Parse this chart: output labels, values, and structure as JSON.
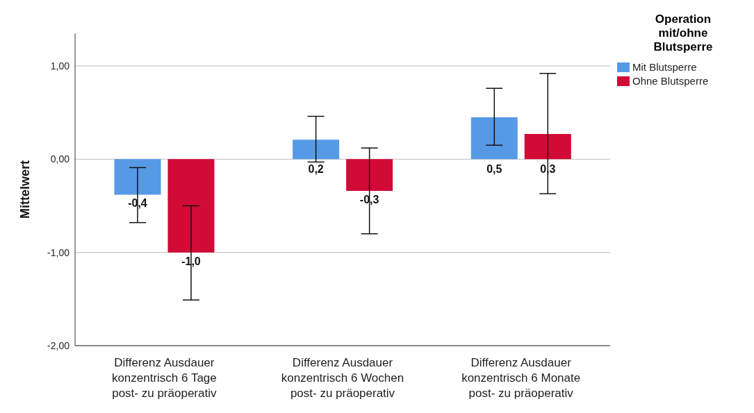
{
  "chart_data": {
    "type": "bar",
    "ylabel": "Mittelwert",
    "legend_title": "Operation mit/ohne Blutsperre",
    "legend": "top right",
    "grid": "y",
    "categories": [
      "Differenz Ausdauer konzentrisch 6 Tage post- zu präoperativ",
      "Differenz Ausdauer konzentrisch 6 Wochen post- zu präoperativ",
      "Differenz Ausdauer konzentrisch 6 Monate post- zu präoperativ"
    ],
    "ylim": [
      -2,
      1.35
    ],
    "yticks": [
      {
        "value": -2,
        "label": "-2,00"
      },
      {
        "value": -1,
        "label": "-1,00"
      },
      {
        "value": 0,
        "label": "0,00"
      },
      {
        "value": 1,
        "label": "1,00"
      }
    ],
    "series": [
      {
        "name": "Mit Blutsperre",
        "color": "#569ae6",
        "values": [
          -0.38,
          0.21,
          0.45
        ],
        "errors": [
          [
            -0.68,
            -0.09
          ],
          [
            -0.03,
            0.46
          ],
          [
            0.15,
            0.76
          ]
        ],
        "value_labels": [
          "-0,4",
          "0,2",
          "0,5"
        ]
      },
      {
        "name": "Ohne Blutsperre",
        "color": "#d10a36",
        "values": [
          -1.0,
          -0.34,
          0.27
        ],
        "errors": [
          [
            -1.51,
            -0.5
          ],
          [
            -0.8,
            0.12
          ],
          [
            -0.37,
            0.92
          ]
        ],
        "value_labels": [
          "-1,0",
          "-0,3",
          "0,3"
        ]
      }
    ]
  }
}
